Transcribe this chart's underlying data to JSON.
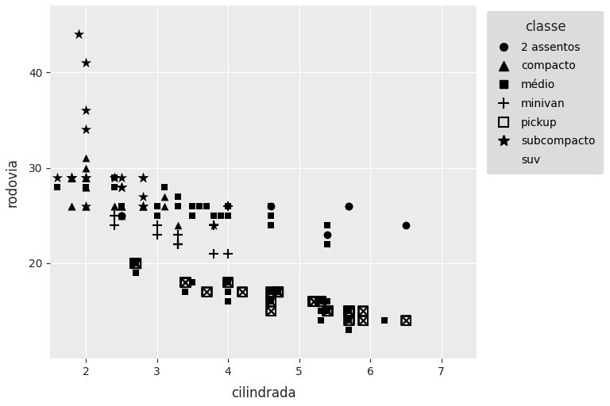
{
  "title": "",
  "xlabel": "cilindrada",
  "ylabel": "rodovia",
  "legend_title": "classe",
  "background_color": "#EBEBEB",
  "legend_background": "#DCDCDC",
  "grid_color": "white",
  "text_color": "#222222",
  "classes": [
    "2 assentos",
    "compacto",
    "médio",
    "minivan",
    "pickup",
    "subcompacto",
    "suv"
  ],
  "markers": [
    "o",
    "^",
    "s",
    "+",
    "s",
    "*",
    "s"
  ],
  "marker_sizes": [
    7,
    7,
    7,
    9,
    7,
    10,
    7
  ],
  "xlim": [
    1.5,
    7.5
  ],
  "ylim": [
    10,
    47
  ],
  "yticks": [
    20,
    30,
    40
  ],
  "xticks": [
    2,
    3,
    4,
    5,
    6,
    7
  ],
  "data": {
    "2 assentos": {
      "displ": [
        5.7,
        5.7,
        6.5,
        2.5,
        2.5,
        4.6,
        5.4
      ],
      "hwy": [
        26,
        26,
        24,
        25,
        25,
        26,
        23
      ]
    },
    "compacto": {
      "displ": [
        1.8,
        1.8,
        2.0,
        2.0,
        2.8,
        2.8,
        3.1,
        1.8,
        1.8,
        2.0,
        2.0,
        2.0,
        2.0,
        2.8,
        2.8,
        3.1,
        1.8,
        1.8,
        2.0,
        2.0,
        2.0,
        2.0,
        2.0,
        2.4,
        2.4,
        2.5,
        2.5,
        3.3,
        1.8,
        1.8,
        2.0,
        2.5,
        2.5
      ],
      "hwy": [
        29,
        29,
        31,
        30,
        26,
        26,
        27,
        29,
        29,
        29,
        29,
        28,
        29,
        26,
        26,
        26,
        29,
        26,
        26,
        26,
        26,
        29,
        29,
        26,
        26,
        25,
        26,
        24,
        29,
        26,
        28,
        26,
        26
      ]
    },
    "médio": {
      "displ": [
        2.4,
        2.4,
        3.1,
        3.5,
        3.6,
        2.4,
        3.0,
        3.3,
        3.3,
        3.3,
        3.3,
        3.3,
        3.8,
        3.8,
        3.8,
        4.0,
        3.7,
        3.7,
        3.9,
        3.9,
        4.0,
        4.0,
        4.6,
        4.6,
        4.6,
        4.6,
        5.4,
        1.6,
        1.6,
        1.6,
        2.0,
        2.5,
        2.5,
        2.5,
        2.5,
        3.0,
        3.0,
        3.5,
        3.3,
        3.8,
        3.8,
        4.0,
        4.0,
        4.0,
        4.0,
        4.6,
        4.6,
        4.6,
        4.6,
        5.4
      ],
      "hwy": [
        28,
        28,
        28,
        26,
        26,
        29,
        26,
        27,
        27,
        26,
        26,
        26,
        25,
        25,
        25,
        25,
        26,
        26,
        25,
        25,
        25,
        25,
        25,
        24,
        24,
        24,
        22,
        28,
        28,
        28,
        28,
        26,
        26,
        26,
        26,
        26,
        25,
        25,
        26,
        25,
        25,
        26,
        26,
        26,
        26,
        26,
        26,
        25,
        25,
        24
      ]
    },
    "minivan": {
      "displ": [
        2.4,
        3.0,
        3.3,
        3.3,
        3.3,
        3.3,
        3.8,
        3.8,
        4.0,
        2.4,
        3.0,
        3.3,
        3.3,
        3.8,
        4.0
      ],
      "hwy": [
        24,
        24,
        22,
        22,
        22,
        22,
        24,
        24,
        26,
        25,
        23,
        23,
        22,
        21,
        21
      ]
    },
    "pickup": {
      "displ": [
        2.7,
        2.7,
        2.7,
        3.7,
        4.7,
        4.7,
        4.7,
        5.2,
        5.3,
        5.3,
        5.7,
        5.9,
        4.0,
        4.2,
        4.6,
        4.6,
        4.6,
        5.4,
        5.4,
        5.4,
        5.7,
        6.5,
        2.7,
        2.7,
        2.7,
        3.4,
        3.4,
        4.0,
        4.7,
        4.7,
        4.7,
        5.2,
        5.7,
        5.9
      ],
      "hwy": [
        20,
        20,
        20,
        17,
        17,
        17,
        17,
        16,
        16,
        16,
        15,
        15,
        18,
        17,
        17,
        16,
        15,
        15,
        15,
        15,
        14,
        14,
        20,
        20,
        20,
        18,
        18,
        18,
        17,
        17,
        17,
        16,
        15,
        14
      ]
    },
    "subcompacto": {
      "displ": [
        1.8,
        1.8,
        2.0,
        2.0,
        2.8,
        1.9,
        2.0,
        2.0,
        2.0,
        2.5,
        2.5,
        2.8,
        2.8,
        3.8,
        1.6,
        1.8,
        1.8,
        2.0,
        2.4,
        2.4,
        2.5,
        2.5,
        2.8,
        2.8
      ],
      "hwy": [
        29,
        29,
        34,
        36,
        26,
        44,
        41,
        29,
        26,
        28,
        28,
        27,
        29,
        24,
        29,
        29,
        29,
        29,
        29,
        29,
        28,
        29,
        29,
        26
      ]
    },
    "suv": {
      "displ": [
        2.7,
        2.7,
        2.7,
        3.4,
        3.4,
        4.0,
        4.0,
        4.6,
        4.6,
        4.6,
        4.6,
        4.7,
        4.7,
        5.4,
        5.4,
        5.7,
        3.5,
        3.5,
        4.0,
        4.0,
        4.0,
        4.0,
        4.6,
        4.6,
        5.3,
        5.3,
        5.3,
        5.3,
        5.7,
        4.7,
        4.7,
        4.7,
        4.7,
        5.4,
        4.0,
        4.0,
        5.3,
        5.3,
        5.7,
        5.7,
        6.2,
        6.2,
        4.6,
        4.6,
        4.6,
        5.3,
        5.3,
        5.3,
        5.3
      ],
      "hwy": [
        20,
        19,
        20,
        17,
        17,
        16,
        16,
        17,
        17,
        17,
        17,
        17,
        17,
        16,
        15,
        14,
        18,
        18,
        18,
        18,
        18,
        16,
        16,
        16,
        14,
        14,
        14,
        14,
        13,
        17,
        17,
        17,
        17,
        16,
        18,
        17,
        15,
        15,
        15,
        14,
        14,
        14,
        17,
        16,
        16,
        16,
        15,
        15,
        15
      ]
    }
  },
  "marker_specs": {
    "2 assentos": {
      "marker": "o",
      "size": 7,
      "facecolor": "black",
      "edgecolor": "black",
      "linewidth": 0
    },
    "compacto": {
      "marker": "^",
      "size": 7,
      "facecolor": "black",
      "edgecolor": "black",
      "linewidth": 0
    },
    "médio": {
      "marker": "s",
      "size": 6,
      "facecolor": "black",
      "edgecolor": "black",
      "linewidth": 0
    },
    "minivan": {
      "marker": "+",
      "size": 9,
      "facecolor": "black",
      "edgecolor": "black",
      "linewidth": 1.5
    },
    "pickup": {
      "marker": "s",
      "size": 9,
      "facecolor": "none",
      "edgecolor": "black",
      "linewidth": 1.2
    },
    "subcompacto": {
      "marker": "*",
      "size": 10,
      "facecolor": "black",
      "edgecolor": "black",
      "linewidth": 0
    },
    "suv": {
      "marker": "s",
      "size": 6,
      "facecolor": "black",
      "edgecolor": "black",
      "linewidth": 0
    }
  },
  "legend_marker_specs": {
    "2 assentos": {
      "marker": "o",
      "ms": 7,
      "mfc": "black",
      "mec": "black",
      "lw": 0
    },
    "compacto": {
      "marker": "^",
      "ms": 8,
      "mfc": "black",
      "mec": "black",
      "lw": 0
    },
    "médio": {
      "marker": "s",
      "ms": 7,
      "mfc": "black",
      "mec": "black",
      "lw": 0
    },
    "minivan": {
      "marker": "+",
      "ms": 10,
      "mfc": "black",
      "mec": "black",
      "lw": 1.5
    },
    "pickup": {
      "marker": "s",
      "ms": 9,
      "mfc": "none",
      "mec": "black",
      "lw": 1.5
    },
    "subcompacto": {
      "marker": "*",
      "ms": 10,
      "mfc": "black",
      "mec": "black",
      "lw": 0
    },
    "suv": {
      "marker": "None",
      "ms": 0,
      "mfc": "none",
      "mec": "none",
      "lw": 0
    }
  }
}
